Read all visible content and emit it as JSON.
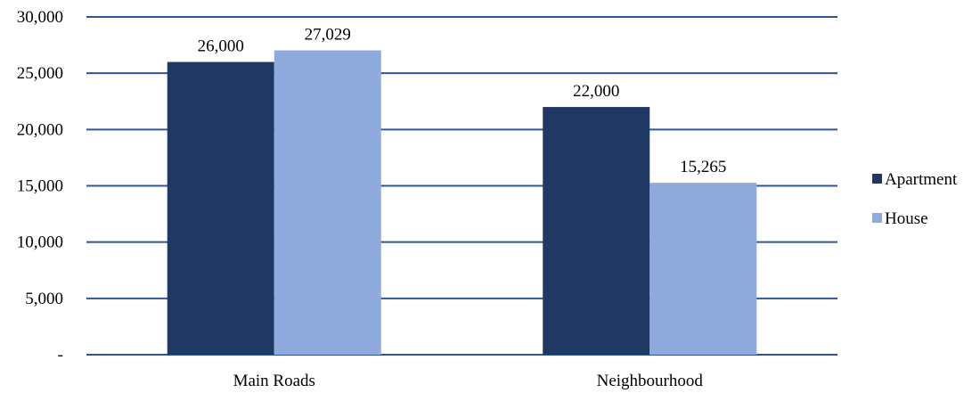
{
  "chart_data": {
    "type": "bar",
    "categories": [
      "Main Roads",
      "Neighbourhood"
    ],
    "series": [
      {
        "name": "Apartment",
        "values": [
          26000,
          22000
        ],
        "labels": [
          "26,000",
          "22,000"
        ],
        "color": "#203864"
      },
      {
        "name": "House",
        "values": [
          27029,
          15265
        ],
        "labels": [
          "27,029",
          "15,265"
        ],
        "color": "#8FAADC"
      }
    ],
    "ylim": [
      0,
      30000
    ],
    "yticks": [
      0,
      5000,
      10000,
      15000,
      20000,
      25000,
      30000
    ],
    "ytick_labels": [
      "-",
      "5,000",
      "10,000",
      "15,000",
      "20,000",
      "25,000",
      "30,000"
    ],
    "gridline_color": "#2F5597",
    "grid": true,
    "legend_position": "right"
  }
}
